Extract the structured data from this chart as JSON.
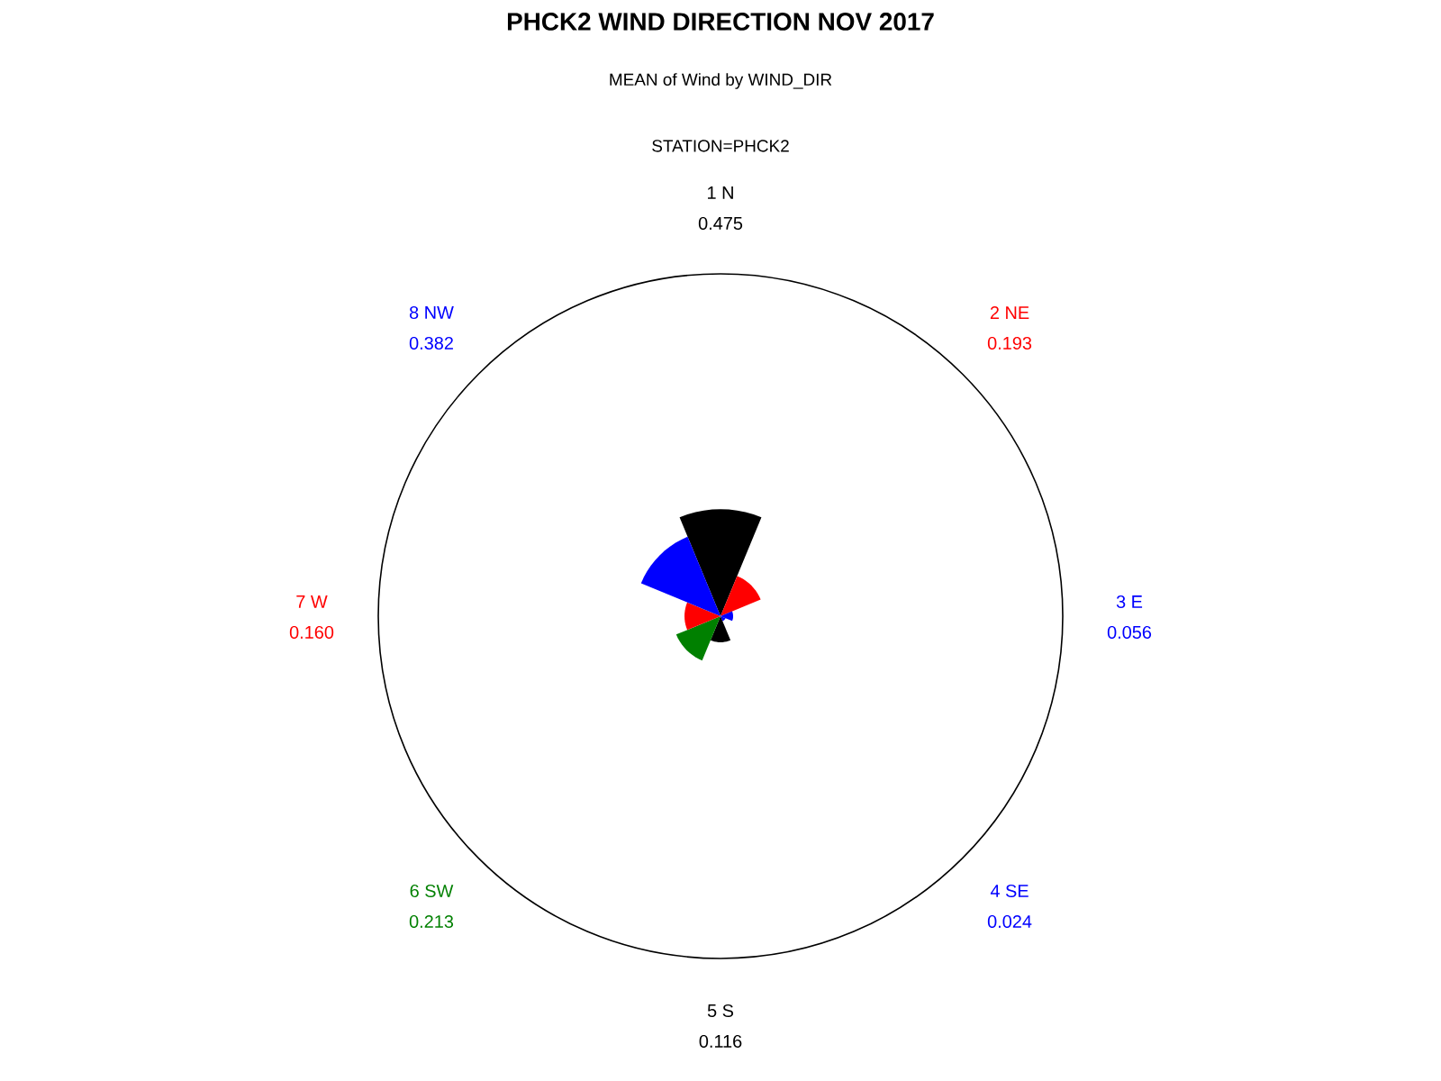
{
  "chart_data": {
    "type": "other",
    "title": "PHCK2 WIND DIRECTION NOV 2017",
    "subtitle": "MEAN of Wind by WIND_DIR",
    "annotations": [
      "STATION=PHCK2"
    ],
    "categories": [
      "1 N",
      "2 NE",
      "3 E",
      "4 SE",
      "5 S",
      "6 SW",
      "7 W",
      "8 NW"
    ],
    "series": [
      {
        "values": [
          0.475,
          0.193,
          0.056,
          0.024,
          0.116,
          0.213,
          0.16,
          0.382
        ],
        "colors": [
          "#000000",
          "#ff0000",
          "#0000ff",
          "#0000ff",
          "#000000",
          "#008000",
          "#ff0000",
          "#0000ff"
        ],
        "value_labels": [
          "0.475",
          "0.193",
          "0.056",
          "0.024",
          "0.116",
          "0.213",
          "0.160",
          "0.382"
        ]
      }
    ]
  }
}
